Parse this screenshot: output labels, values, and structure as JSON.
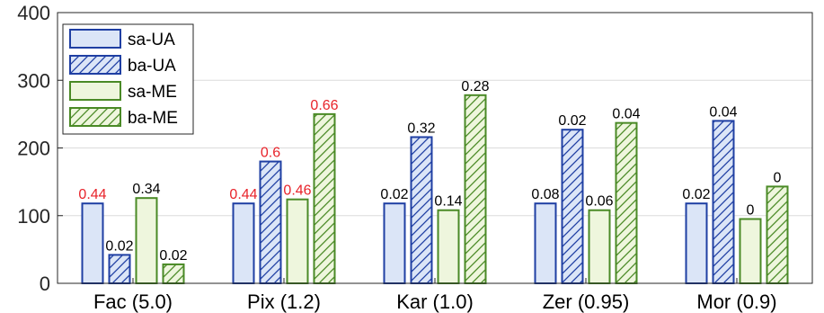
{
  "chart_data": {
    "type": "bar",
    "categories": [
      "Fac (5.0)",
      "Pix (1.2)",
      "Kar (1.0)",
      "Zer (0.95)",
      "Mor (0.9)"
    ],
    "series": [
      {
        "name": "sa-UA",
        "values": [
          118,
          118,
          118,
          118,
          118
        ],
        "labels": [
          "0.44",
          "0.44",
          "0.02",
          "0.08",
          "0.02"
        ],
        "label_colors": [
          "#e8232a",
          "#e8232a",
          "#000000",
          "#000000",
          "#000000"
        ]
      },
      {
        "name": "ba-UA",
        "values": [
          42,
          180,
          216,
          227,
          240
        ],
        "labels": [
          "0.02",
          "0.6",
          "0.32",
          "0.02",
          "0.04"
        ],
        "label_colors": [
          "#000000",
          "#e8232a",
          "#000000",
          "#000000",
          "#000000"
        ]
      },
      {
        "name": "sa-ME",
        "values": [
          126,
          124,
          108,
          108,
          95
        ],
        "labels": [
          "0.34",
          "0.46",
          "0.14",
          "0.06",
          "0"
        ],
        "label_colors": [
          "#000000",
          "#e8232a",
          "#000000",
          "#000000",
          "#000000"
        ]
      },
      {
        "name": "ba-ME",
        "values": [
          28,
          250,
          278,
          237,
          143
        ],
        "labels": [
          "0.02",
          "0.66",
          "0.28",
          "0.04",
          "0"
        ],
        "label_colors": [
          "#000000",
          "#e8232a",
          "#000000",
          "#000000",
          "#000000"
        ]
      }
    ],
    "ylim": [
      0,
      400
    ],
    "yticks": [
      "0",
      "100",
      "200",
      "300",
      "400"
    ],
    "grid": true,
    "legend_position": "top-left",
    "colors": {
      "ua_edge": "#1f3fa3",
      "ua_fill": "#dbe5f7",
      "me_edge": "#4a8a26",
      "me_fill": "#eef6dd",
      "highlight_label": "#e8232a"
    }
  }
}
